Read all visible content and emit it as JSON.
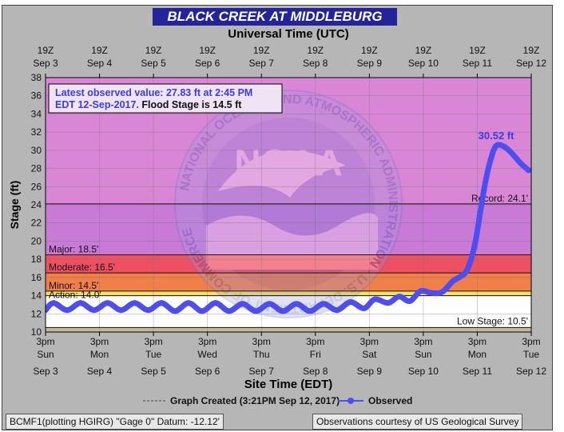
{
  "title": "BLACK CREEK AT MIDDLEBURG",
  "top_axis_title": "Universal Time (UTC)",
  "bottom_axis_title": "Site Time (EDT)",
  "y_axis_title": "Stage (ft)",
  "top_ticks": [
    {
      "hour": "19Z",
      "date": "Sep 3"
    },
    {
      "hour": "19Z",
      "date": "Sep 4"
    },
    {
      "hour": "19Z",
      "date": "Sep 5"
    },
    {
      "hour": "19Z",
      "date": "Sep 6"
    },
    {
      "hour": "19Z",
      "date": "Sep 7"
    },
    {
      "hour": "19Z",
      "date": "Sep 8"
    },
    {
      "hour": "19Z",
      "date": "Sep 9"
    },
    {
      "hour": "19Z",
      "date": "Sep 10"
    },
    {
      "hour": "19Z",
      "date": "Sep 11"
    },
    {
      "hour": "19Z",
      "date": "Sep 12"
    }
  ],
  "bottom_ticks": [
    {
      "time": "3pm",
      "day": "Sun",
      "date": "Sep 3"
    },
    {
      "time": "3pm",
      "day": "Mon",
      "date": "Sep 4"
    },
    {
      "time": "3pm",
      "day": "Tue",
      "date": "Sep 5"
    },
    {
      "time": "3pm",
      "day": "Wed",
      "date": "Sep 6"
    },
    {
      "time": "3pm",
      "day": "Thu",
      "date": "Sep 7"
    },
    {
      "time": "3pm",
      "day": "Fri",
      "date": "Sep 8"
    },
    {
      "time": "3pm",
      "day": "Sat",
      "date": "Sep 9"
    },
    {
      "time": "3pm",
      "day": "Sun",
      "date": "Sep 10"
    },
    {
      "time": "3pm",
      "day": "Mon",
      "date": "Sep 11"
    },
    {
      "time": "3pm",
      "day": "Tue",
      "date": "Sep 12"
    }
  ],
  "info_box": {
    "line1": "Latest observed value: 27.83 ft at 2:45 PM",
    "line2_blue": "EDT 12-Sep-2017.",
    "line2_black": " Flood Stage is 14.5 ft"
  },
  "watermark_text": "NOAA",
  "watermark_ring_text": "NATIONAL OCEANIC AND ATMOSPHERIC ADMINISTRATION · U.S. DEPARTMENT OF COMMERCE",
  "legend": {
    "created_label": "Graph Created (3:21PM Sep 12, 2017)",
    "observed_label": "Observed"
  },
  "footer": {
    "left": "BCMF1(plotting HGIRG) \"Gage 0\" Datum: -12.12'",
    "right": "Observations courtesy of US Geological Survey"
  },
  "colors": {
    "title_bg": "#24249a",
    "series": "#4d4df0",
    "major_band": "#c97ad6",
    "record_zone": "#d986d6",
    "moderate_band": "#ee4f62",
    "minor_band": "#f07f4a",
    "action_band": "#f4e060",
    "normal_band": "#ffffff",
    "low_band": "#c8b89a"
  },
  "chart_data": {
    "type": "line",
    "x_unit": "days since 3pm EDT Sun Sep 3, 2017",
    "xlim": [
      0,
      9
    ],
    "ylim": [
      10,
      38
    ],
    "y_ticks": [
      10,
      12,
      14,
      16,
      18,
      20,
      22,
      24,
      26,
      28,
      30,
      32,
      34,
      36,
      38
    ],
    "thresholds": [
      {
        "name": "Record",
        "label": "Record: 24.1'",
        "value": 24.1
      },
      {
        "name": "Major",
        "label": "Major: 18.5'",
        "value": 18.5
      },
      {
        "name": "Moderate",
        "label": "Moderate: 16.5'",
        "value": 16.5
      },
      {
        "name": "Minor",
        "label": "Minor: 14.5'",
        "value": 14.5
      },
      {
        "name": "Action",
        "label": "Action: 14.0'",
        "value": 14.0
      },
      {
        "name": "Low Stage",
        "label": "Low Stage: 10.5'",
        "value": 10.5
      }
    ],
    "peak_label": "30.52 ft",
    "peak": {
      "x": 8.35,
      "y": 30.52
    },
    "series": [
      {
        "name": "Observed",
        "points": [
          [
            0.0,
            12.4
          ],
          [
            0.15,
            13.2
          ],
          [
            0.4,
            12.4
          ],
          [
            0.65,
            13.2
          ],
          [
            0.9,
            12.4
          ],
          [
            1.15,
            13.2
          ],
          [
            1.4,
            12.4
          ],
          [
            1.65,
            13.2
          ],
          [
            1.9,
            12.4
          ],
          [
            2.15,
            13.2
          ],
          [
            2.4,
            12.3
          ],
          [
            2.65,
            13.2
          ],
          [
            2.9,
            12.3
          ],
          [
            3.15,
            13.2
          ],
          [
            3.4,
            12.3
          ],
          [
            3.65,
            13.1
          ],
          [
            3.9,
            12.3
          ],
          [
            4.15,
            13.1
          ],
          [
            4.4,
            12.3
          ],
          [
            4.65,
            13.1
          ],
          [
            4.9,
            12.3
          ],
          [
            5.15,
            13.1
          ],
          [
            5.4,
            12.4
          ],
          [
            5.65,
            13.3
          ],
          [
            5.9,
            12.6
          ],
          [
            6.1,
            13.6
          ],
          [
            6.35,
            13.2
          ],
          [
            6.55,
            13.9
          ],
          [
            6.75,
            13.4
          ],
          [
            6.95,
            14.5
          ],
          [
            7.15,
            14.3
          ],
          [
            7.35,
            14.4
          ],
          [
            7.55,
            15.6
          ],
          [
            7.8,
            16.7
          ],
          [
            7.95,
            19.5
          ],
          [
            8.05,
            23.0
          ],
          [
            8.15,
            26.5
          ],
          [
            8.25,
            29.0
          ],
          [
            8.35,
            30.5
          ],
          [
            8.5,
            30.4
          ],
          [
            8.65,
            29.6
          ],
          [
            8.8,
            28.6
          ],
          [
            8.95,
            27.8
          ]
        ]
      }
    ]
  }
}
